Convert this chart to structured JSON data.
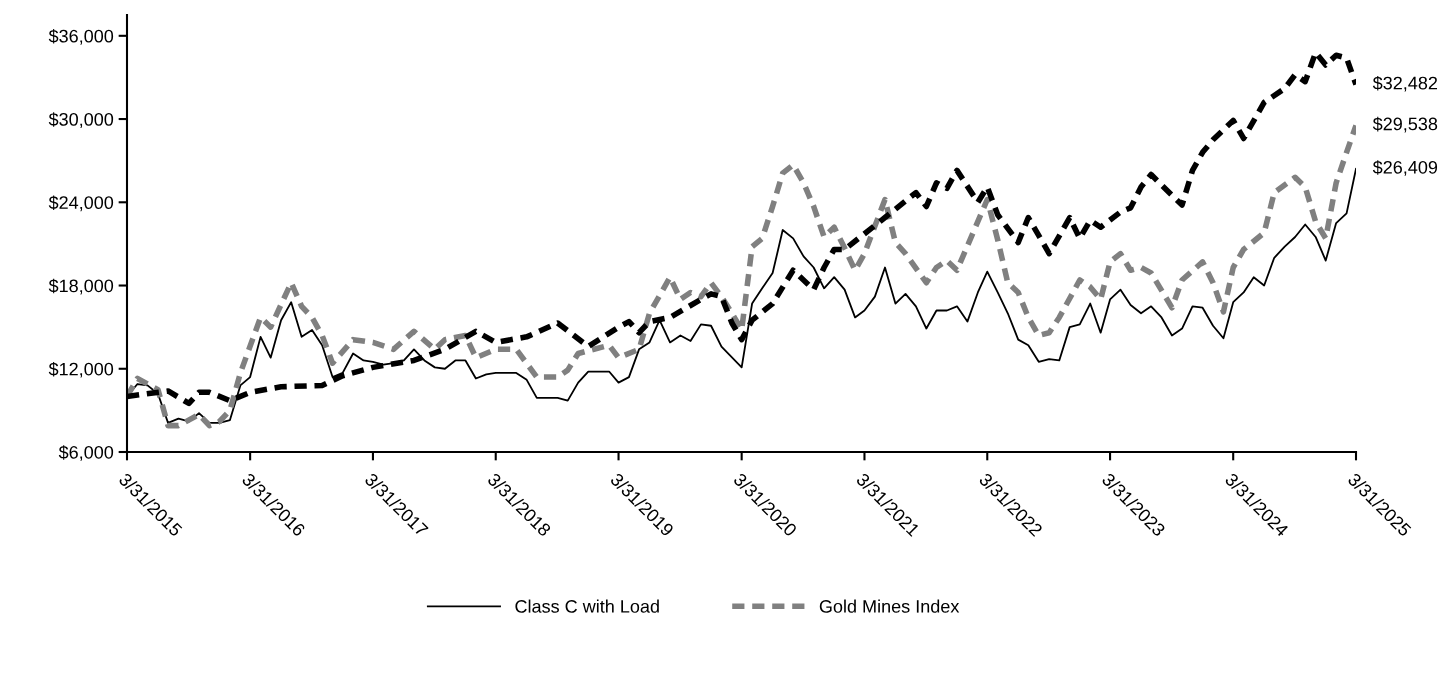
{
  "chart_data": {
    "type": "line",
    "ylim": [
      6000,
      37500
    ],
    "yticks": [
      {
        "value": 6000,
        "label": "$6,000"
      },
      {
        "value": 12000,
        "label": "$12,000"
      },
      {
        "value": 18000,
        "label": "$18,000"
      },
      {
        "value": 24000,
        "label": "$24,000"
      },
      {
        "value": 30000,
        "label": "$30,000"
      },
      {
        "value": 36000,
        "label": "$36,000"
      }
    ],
    "xlim": [
      "2015-03",
      "2025-03"
    ],
    "xticks": [
      {
        "value": "2015-03",
        "label": "3/31/2015"
      },
      {
        "value": "2016-03",
        "label": "3/31/2016"
      },
      {
        "value": "2017-03",
        "label": "3/31/2017"
      },
      {
        "value": "2018-03",
        "label": "3/31/2018"
      },
      {
        "value": "2019-03",
        "label": "3/31/2019"
      },
      {
        "value": "2020-03",
        "label": "3/31/2020"
      },
      {
        "value": "2021-03",
        "label": "3/31/2021"
      },
      {
        "value": "2022-03",
        "label": "3/31/2022"
      },
      {
        "value": "2023-03",
        "label": "3/31/2023"
      },
      {
        "value": "2024-03",
        "label": "3/31/2024"
      },
      {
        "value": "2025-03",
        "label": "3/31/2025"
      }
    ],
    "grid": false,
    "legend": "bottom",
    "series": [
      {
        "name": "Class C with Load",
        "color": "#000000",
        "line_style": "solid",
        "x": [
          "2015-03",
          "2015-04",
          "2015-05",
          "2015-06",
          "2015-07",
          "2015-08",
          "2015-09",
          "2015-10",
          "2015-11",
          "2015-12",
          "2016-01",
          "2016-02",
          "2016-03",
          "2016-04",
          "2016-05",
          "2016-06",
          "2016-07",
          "2016-08",
          "2016-09",
          "2016-10",
          "2016-11",
          "2016-12",
          "2017-01",
          "2017-02",
          "2017-03",
          "2017-04",
          "2017-05",
          "2017-06",
          "2017-07",
          "2017-08",
          "2017-09",
          "2017-10",
          "2017-11",
          "2017-12",
          "2018-01",
          "2018-02",
          "2018-03",
          "2018-05",
          "2018-06",
          "2018-07",
          "2018-09",
          "2018-10",
          "2018-11",
          "2018-12",
          "2019-02",
          "2019-03",
          "2019-04",
          "2019-05",
          "2019-06",
          "2019-07",
          "2019-08",
          "2019-09",
          "2019-10",
          "2019-11",
          "2019-12",
          "2020-01",
          "2020-03",
          "2020-04",
          "2020-05",
          "2020-06",
          "2020-07",
          "2020-08",
          "2020-09",
          "2020-10",
          "2020-11",
          "2020-12",
          "2021-01",
          "2021-02",
          "2021-03",
          "2021-04",
          "2021-05",
          "2021-06",
          "2021-07",
          "2021-08",
          "2021-09",
          "2021-10",
          "2021-11",
          "2021-12",
          "2022-01",
          "2022-02",
          "2022-03",
          "2022-04",
          "2022-05",
          "2022-06",
          "2022-07",
          "2022-08",
          "2022-09",
          "2022-10",
          "2022-11",
          "2022-12",
          "2023-01",
          "2023-02",
          "2023-03",
          "2023-04",
          "2023-05",
          "2023-06",
          "2023-07",
          "2023-08",
          "2023-09",
          "2023-10",
          "2023-11",
          "2023-12",
          "2024-01",
          "2024-02",
          "2024-03",
          "2024-04",
          "2024-05",
          "2024-06",
          "2024-07",
          "2024-08",
          "2024-09",
          "2024-10",
          "2024-11",
          "2024-12",
          "2025-01",
          "2025-02",
          "2025-03"
        ],
        "values": [
          10000,
          10900,
          10800,
          10200,
          8100,
          8400,
          8200,
          8800,
          8100,
          8100,
          8300,
          10800,
          11400,
          14300,
          12800,
          15500,
          16800,
          14300,
          14800,
          13700,
          11400,
          11700,
          13100,
          12600,
          12500,
          12300,
          12400,
          12600,
          13400,
          12600,
          12100,
          12000,
          12600,
          12600,
          11300,
          11600,
          11700,
          11700,
          11200,
          9900,
          9900,
          9700,
          11000,
          11800,
          11800,
          11000,
          11400,
          13400,
          13900,
          15500,
          13900,
          14400,
          14000,
          15200,
          15100,
          13600,
          12100,
          16700,
          17800,
          18900,
          22000,
          21400,
          20100,
          19300,
          17800,
          18600,
          17700,
          15700,
          16200,
          17200,
          19300,
          16700,
          17400,
          16500,
          14900,
          16200,
          16200,
          16500,
          15400,
          17500,
          19000,
          17500,
          16000,
          14100,
          13700,
          12500,
          12700,
          12600,
          15000,
          15200,
          16700,
          14600,
          17000,
          17700,
          16600,
          16000,
          16500,
          15700,
          14400,
          14900,
          16500,
          16400,
          15100,
          14200,
          16800,
          17500,
          18600,
          18000,
          20000,
          20800,
          21500,
          22400,
          21500,
          19800,
          22500,
          23200,
          26409
        ]
      },
      {
        "name": "Gold Mines Index",
        "color": "#808080",
        "line_style": "dashed",
        "x": [
          "2015-03",
          "2015-04",
          "2015-06",
          "2015-07",
          "2015-08",
          "2015-10",
          "2015-11",
          "2015-12",
          "2016-01",
          "2016-02",
          "2016-04",
          "2016-05",
          "2016-07",
          "2016-08",
          "2016-09",
          "2016-10",
          "2016-11",
          "2017-01",
          "2017-03",
          "2017-05",
          "2017-07",
          "2017-09",
          "2017-10",
          "2017-12",
          "2018-01",
          "2018-03",
          "2018-05",
          "2018-07",
          "2018-09",
          "2018-10",
          "2018-11",
          "2019-02",
          "2019-03",
          "2019-05",
          "2019-06",
          "2019-08",
          "2019-09",
          "2019-10",
          "2019-11",
          "2019-12",
          "2020-01",
          "2020-02",
          "2020-03",
          "2020-04",
          "2020-05",
          "2020-06",
          "2020-07",
          "2020-08",
          "2020-09",
          "2020-10",
          "2020-11",
          "2020-12",
          "2021-01",
          "2021-02",
          "2021-03",
          "2021-05",
          "2021-06",
          "2021-07",
          "2021-09",
          "2021-10",
          "2021-11",
          "2021-12",
          "2022-03",
          "2022-04",
          "2022-05",
          "2022-06",
          "2022-07",
          "2022-08",
          "2022-09",
          "2022-10",
          "2022-12",
          "2023-01",
          "2023-02",
          "2023-03",
          "2023-04",
          "2023-05",
          "2023-06",
          "2023-07",
          "2023-09",
          "2023-10",
          "2023-12",
          "2024-01",
          "2024-02",
          "2024-03",
          "2024-04",
          "2024-06",
          "2024-07",
          "2024-09",
          "2024-10",
          "2024-11",
          "2024-12",
          "2025-01",
          "2025-02",
          "2025-03"
        ],
        "values": [
          10000,
          11300,
          10500,
          7900,
          7900,
          8700,
          7900,
          8200,
          9000,
          11700,
          15700,
          15000,
          18200,
          16500,
          15700,
          14400,
          12400,
          14100,
          13900,
          13400,
          14700,
          13400,
          14100,
          14400,
          12800,
          13400,
          13400,
          11400,
          11400,
          11900,
          13100,
          13700,
          12800,
          13400,
          16000,
          18600,
          17000,
          17500,
          17200,
          18200,
          17200,
          16000,
          14800,
          20800,
          21400,
          23700,
          26100,
          26700,
          25400,
          23700,
          21500,
          22200,
          20700,
          19100,
          20300,
          24200,
          21100,
          20300,
          18200,
          19300,
          19800,
          19100,
          24200,
          21300,
          18200,
          17500,
          15700,
          14400,
          14600,
          15700,
          18400,
          17900,
          17000,
          19700,
          20300,
          19100,
          19300,
          18900,
          16400,
          18400,
          19700,
          18200,
          16100,
          19300,
          20600,
          21800,
          24700,
          25800,
          25100,
          22600,
          21400,
          25400,
          27600,
          29538
        ]
      },
      {
        "color": "#000000",
        "line_style": "dashed",
        "x": [
          "2015-03",
          "2015-07",
          "2015-09",
          "2015-10",
          "2015-11",
          "2016-01",
          "2016-03",
          "2016-06",
          "2016-10",
          "2016-12",
          "2017-03",
          "2017-07",
          "2017-10",
          "2018-01",
          "2018-03",
          "2018-06",
          "2018-09",
          "2018-12",
          "2019-03",
          "2019-04",
          "2019-05",
          "2019-06",
          "2019-08",
          "2019-11",
          "2019-12",
          "2020-01",
          "2020-02",
          "2020-03",
          "2020-04",
          "2020-06",
          "2020-08",
          "2020-10",
          "2020-11",
          "2020-12",
          "2021-01",
          "2021-05",
          "2021-08",
          "2021-09",
          "2021-10",
          "2021-11",
          "2021-12",
          "2022-02",
          "2022-03",
          "2022-04",
          "2022-06",
          "2022-07",
          "2022-09",
          "2022-11",
          "2022-12",
          "2023-01",
          "2023-02",
          "2023-04",
          "2023-05",
          "2023-06",
          "2023-07",
          "2023-09",
          "2023-10",
          "2023-11",
          "2023-12",
          "2024-01",
          "2024-03",
          "2024-04",
          "2024-06",
          "2024-08",
          "2024-09",
          "2024-10",
          "2024-11",
          "2024-12",
          "2025-01",
          "2025-02",
          "2025-03"
        ],
        "values": [
          10000,
          10400,
          9500,
          10300,
          10300,
          9700,
          10300,
          10700,
          10800,
          11500,
          12100,
          12600,
          13400,
          14700,
          13900,
          14300,
          15300,
          13600,
          15000,
          15400,
          14600,
          15400,
          15700,
          17000,
          17400,
          17200,
          15300,
          14100,
          15500,
          16700,
          19100,
          17700,
          19300,
          20600,
          20600,
          22900,
          24700,
          23700,
          25400,
          25000,
          26300,
          24000,
          25100,
          23100,
          21100,
          22900,
          20300,
          22900,
          21400,
          22700,
          22200,
          23300,
          23600,
          25100,
          26000,
          24500,
          23800,
          26300,
          27600,
          28500,
          29900,
          28600,
          31200,
          32200,
          33200,
          32700,
          34800,
          33900,
          34600,
          34400,
          32482
        ]
      }
    ],
    "annotations": [
      {
        "text": "$32,482",
        "x": "2025-03",
        "y": 32482
      },
      {
        "text": "$29,538",
        "x": "2025-03",
        "y": 29538
      },
      {
        "text": "$26,409",
        "x": "2025-03",
        "y": 26409
      }
    ]
  }
}
